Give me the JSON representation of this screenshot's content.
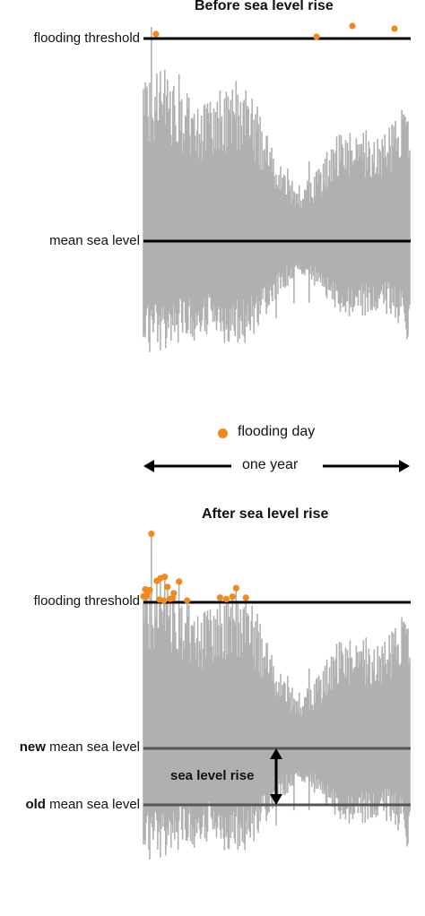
{
  "top": {
    "title": "Before sea level rise",
    "threshold_label": "flooding threshold",
    "mean_label": "mean sea level"
  },
  "legend": {
    "flooding_day_label": "flooding day",
    "period_label": "one year"
  },
  "bottom": {
    "title": "After sea level rise",
    "threshold_label": "flooding threshold",
    "new_mean_bold": "new",
    "new_mean_rest": " mean sea level",
    "old_mean_bold": "old",
    "old_mean_rest": " mean sea level",
    "rise_label": "sea level rise"
  },
  "colors": {
    "water": "#b0b0b0",
    "flood_dot": "#f08a1c",
    "line": "#000000",
    "mean_line_bottom": "#555555"
  }
}
